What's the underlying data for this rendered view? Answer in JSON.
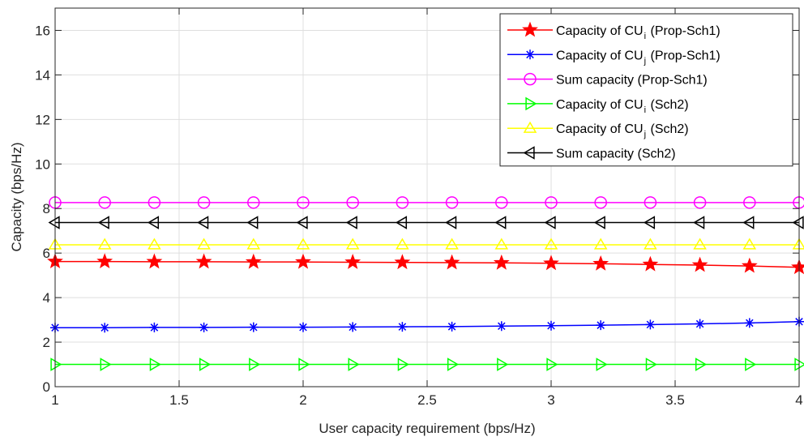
{
  "chart_data": {
    "type": "line",
    "xlabel": "User capacity requirement (bps/Hz)",
    "ylabel": "Capacity (bps/Hz)",
    "xlim": [
      1,
      4
    ],
    "ylim": [
      0,
      17
    ],
    "xticks": [
      "1",
      "1.5",
      "2",
      "2.5",
      "3",
      "3.5",
      "4"
    ],
    "yticks": [
      "0",
      "2",
      "4",
      "6",
      "8",
      "10",
      "12",
      "14",
      "16"
    ],
    "grid": true,
    "legend_position": "top-right",
    "x": [
      1,
      1.2,
      1.4,
      1.6,
      1.8,
      2,
      2.2,
      2.4,
      2.6,
      2.8,
      3,
      3.2,
      3.4,
      3.6,
      3.8,
      4
    ],
    "series": [
      {
        "name": "Capacity of CU_i (Prop-Sch1)",
        "legend_main": "Capacity of CU",
        "legend_sub": "i",
        "legend_tail": " (Prop-Sch1)",
        "color": "#ff0000",
        "marker": "star",
        "values": [
          5.62,
          5.62,
          5.61,
          5.61,
          5.6,
          5.6,
          5.59,
          5.58,
          5.57,
          5.56,
          5.54,
          5.52,
          5.49,
          5.46,
          5.42,
          5.36
        ]
      },
      {
        "name": "Capacity of CU_j (Prop-Sch1)",
        "legend_main": "Capacity of CU",
        "legend_sub": "j",
        "legend_tail": " (Prop-Sch1)",
        "color": "#0000ff",
        "marker": "asterisk",
        "values": [
          2.65,
          2.65,
          2.66,
          2.66,
          2.67,
          2.67,
          2.68,
          2.69,
          2.7,
          2.72,
          2.74,
          2.76,
          2.79,
          2.82,
          2.86,
          2.92
        ]
      },
      {
        "name": "Sum capacity (Prop-Sch1)",
        "legend_main": "Sum capacity (Prop-Sch1)",
        "legend_sub": "",
        "legend_tail": "",
        "color": "#ff00ff",
        "marker": "circle",
        "values": [
          8.27,
          8.27,
          8.27,
          8.27,
          8.27,
          8.27,
          8.27,
          8.27,
          8.27,
          8.27,
          8.27,
          8.27,
          8.27,
          8.27,
          8.27,
          8.27
        ]
      },
      {
        "name": "Capacity of CU_i (Sch2)",
        "legend_main": "Capacity of CU",
        "legend_sub": "i",
        "legend_tail": " (Sch2)",
        "color": "#00ff00",
        "marker": "triangle-right",
        "values": [
          1.0,
          1.0,
          1.0,
          1.0,
          1.0,
          1.0,
          1.0,
          1.0,
          1.0,
          1.0,
          1.0,
          1.0,
          1.0,
          1.0,
          1.0,
          1.0
        ]
      },
      {
        "name": "Capacity of CU_j (Sch2)",
        "legend_main": "Capacity of CU",
        "legend_sub": "j",
        "legend_tail": " (Sch2)",
        "color": "#ffff00",
        "marker": "triangle-up",
        "values": [
          6.37,
          6.37,
          6.37,
          6.37,
          6.37,
          6.37,
          6.37,
          6.37,
          6.37,
          6.37,
          6.37,
          6.37,
          6.37,
          6.37,
          6.37,
          6.37
        ]
      },
      {
        "name": "Sum capacity (Sch2)",
        "legend_main": "Sum capacity (Sch2)",
        "legend_sub": "",
        "legend_tail": "",
        "color": "#000000",
        "marker": "triangle-left",
        "values": [
          7.37,
          7.37,
          7.37,
          7.37,
          7.37,
          7.37,
          7.37,
          7.37,
          7.37,
          7.37,
          7.37,
          7.37,
          7.37,
          7.37,
          7.37,
          7.37
        ]
      }
    ]
  }
}
